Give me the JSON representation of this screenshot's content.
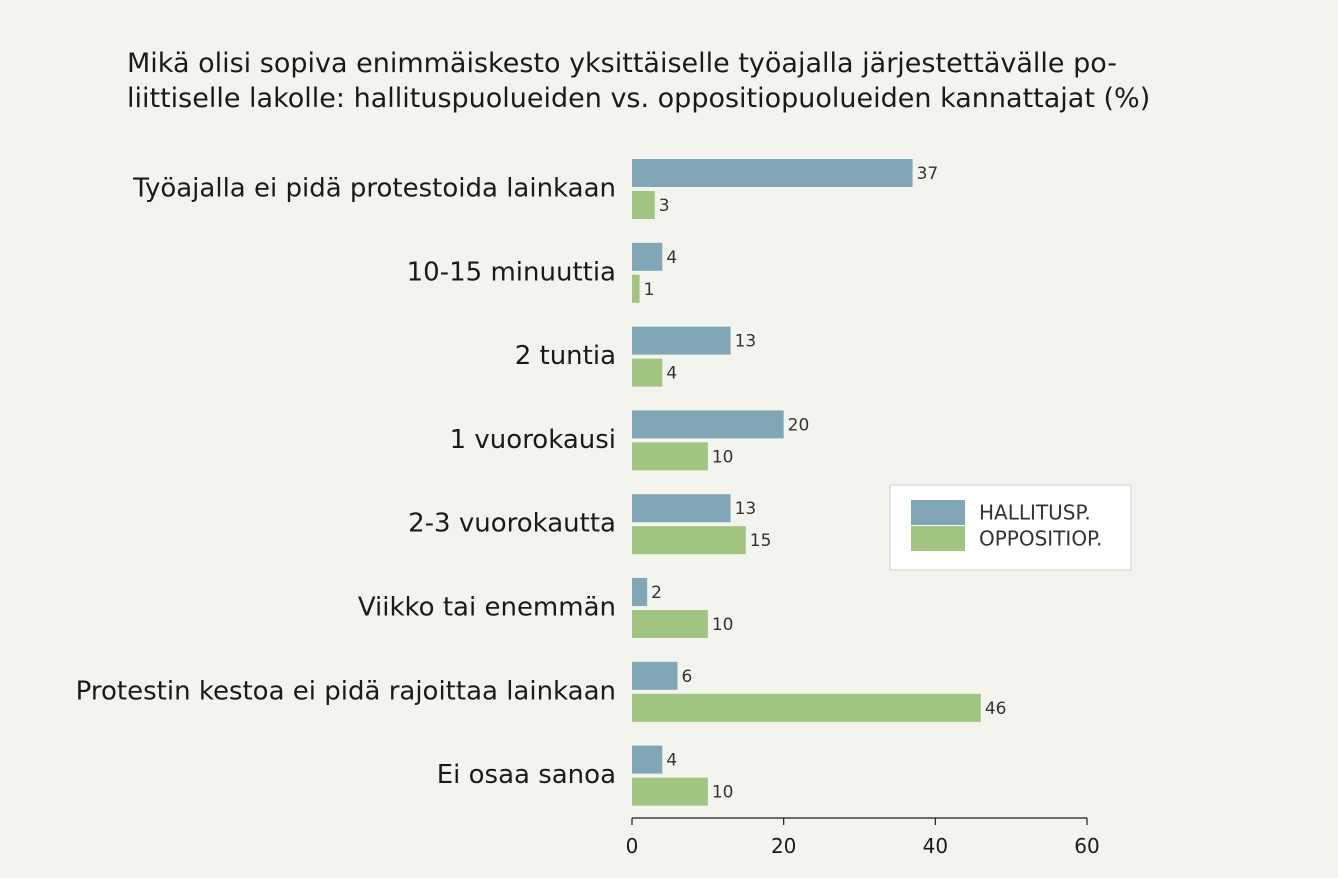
{
  "chart_data": {
    "type": "bar",
    "orientation": "horizontal",
    "title": [
      "Mikä olisi sopiva enimmäiskesto yksittäiselle työajalla järjestettävälle po-",
      "liittiselle lakolle: hallituspuolueiden vs. oppositiopuolueiden kannattajat (%)"
    ],
    "categories": [
      "Työajalla ei pidä protestoida lainkaan",
      "10-15 minuuttia",
      "2 tuntia",
      "1 vuorokausi",
      "2-3 vuorokautta",
      "Viikko tai enemmän",
      "Protestin kestoa ei pidä rajoittaa lainkaan",
      "Ei osaa sanoa"
    ],
    "series": [
      {
        "name": "HALLITUSP.",
        "color": "#81a6b6",
        "values": [
          37,
          4,
          13,
          20,
          13,
          2,
          6,
          4
        ]
      },
      {
        "name": "OPPOSITIOP.",
        "color": "#a1c483",
        "values": [
          3,
          1,
          4,
          10,
          15,
          10,
          46,
          10
        ]
      }
    ],
    "xlim": [
      0,
      60
    ],
    "xticks": [
      0,
      20,
      40,
      60
    ],
    "xlabel": "",
    "ylabel": "",
    "legend_position": "right",
    "grid": false
  }
}
